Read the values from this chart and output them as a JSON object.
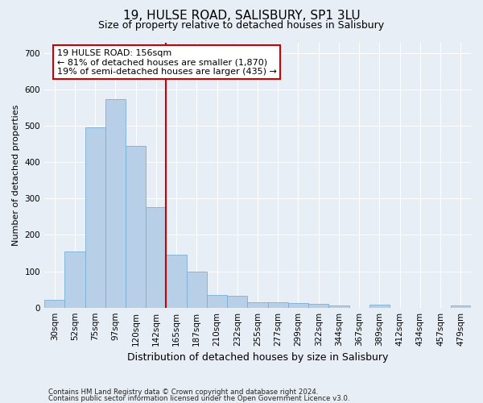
{
  "title": "19, HULSE ROAD, SALISBURY, SP1 3LU",
  "subtitle": "Size of property relative to detached houses in Salisbury",
  "xlabel": "Distribution of detached houses by size in Salisbury",
  "ylabel": "Number of detached properties",
  "bar_labels": [
    "30sqm",
    "52sqm",
    "75sqm",
    "97sqm",
    "120sqm",
    "142sqm",
    "165sqm",
    "187sqm",
    "210sqm",
    "232sqm",
    "255sqm",
    "277sqm",
    "299sqm",
    "322sqm",
    "344sqm",
    "367sqm",
    "389sqm",
    "412sqm",
    "434sqm",
    "457sqm",
    "479sqm"
  ],
  "bar_values": [
    22,
    155,
    497,
    573,
    445,
    277,
    145,
    99,
    35,
    33,
    15,
    15,
    12,
    10,
    5,
    0,
    8,
    0,
    0,
    0,
    6
  ],
  "bar_color": "#b8cfe8",
  "bar_edgecolor": "#7aafd4",
  "reference_line_x": 5.5,
  "reference_line_label": "19 HULSE ROAD: 156sqm",
  "annotation_line1": "← 81% of detached houses are smaller (1,870)",
  "annotation_line2": "19% of semi-detached houses are larger (435) →",
  "annotation_box_color": "#ffffff",
  "annotation_box_edgecolor": "#cc0000",
  "vline_color": "#cc0000",
  "ylim": [
    0,
    730
  ],
  "yticks": [
    0,
    100,
    200,
    300,
    400,
    500,
    600,
    700
  ],
  "footnote1": "Contains HM Land Registry data © Crown copyright and database right 2024.",
  "footnote2": "Contains public sector information licensed under the Open Government Licence v3.0.",
  "bg_color": "#e8eef5",
  "plot_bg_color": "#e8eef5",
  "grid_color": "#ffffff",
  "title_fontsize": 11,
  "subtitle_fontsize": 9,
  "ylabel_fontsize": 8,
  "xlabel_fontsize": 9,
  "tick_fontsize": 7.5,
  "annot_fontsize": 8
}
